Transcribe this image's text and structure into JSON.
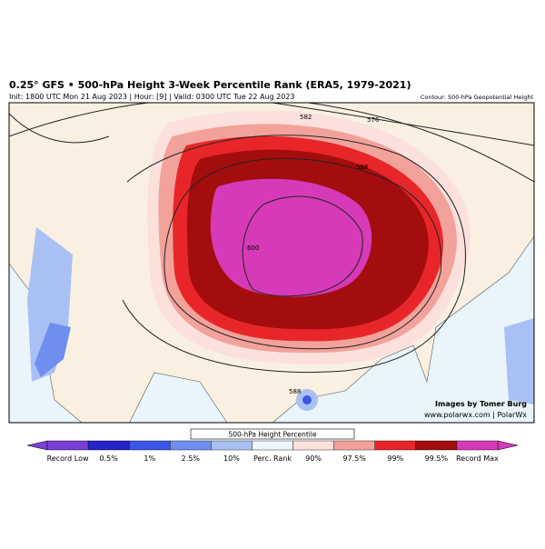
{
  "header": {
    "title": "0.25° GFS • 500-hPa Height 3-Week Percentile Rank (ERA5, 1979-2021)",
    "subtitle": "Init: 1800 UTC Mon 21 Aug 2023 | Hour: [9] | Valid: 0300 UTC Tue 22 Aug 2023",
    "contour_note": "Contour: 500-hPa Geopotential Height"
  },
  "map": {
    "contour_labels": [
      "582",
      "576",
      "588",
      "600",
      "588"
    ]
  },
  "credits": [
    "Images by Tomer Burg",
    "www.polarwx.com | PolarWx"
  ],
  "colorbar": {
    "title": "500-hPa Height Percentile",
    "labels": [
      "Record Low",
      "0.5%",
      "1%",
      "2.5%",
      "10%",
      "Perc. Rank",
      "90%",
      "97.5%",
      "99%",
      "99.5%",
      "Record Max"
    ],
    "colors": [
      "#7b3fd6",
      "#2424c8",
      "#3a55e8",
      "#6f8ff0",
      "#a9c0f4",
      "#eef6fb",
      "#fbe0dc",
      "#f2a29a",
      "#e8262a",
      "#a30d0d",
      "#d63ab8"
    ]
  }
}
